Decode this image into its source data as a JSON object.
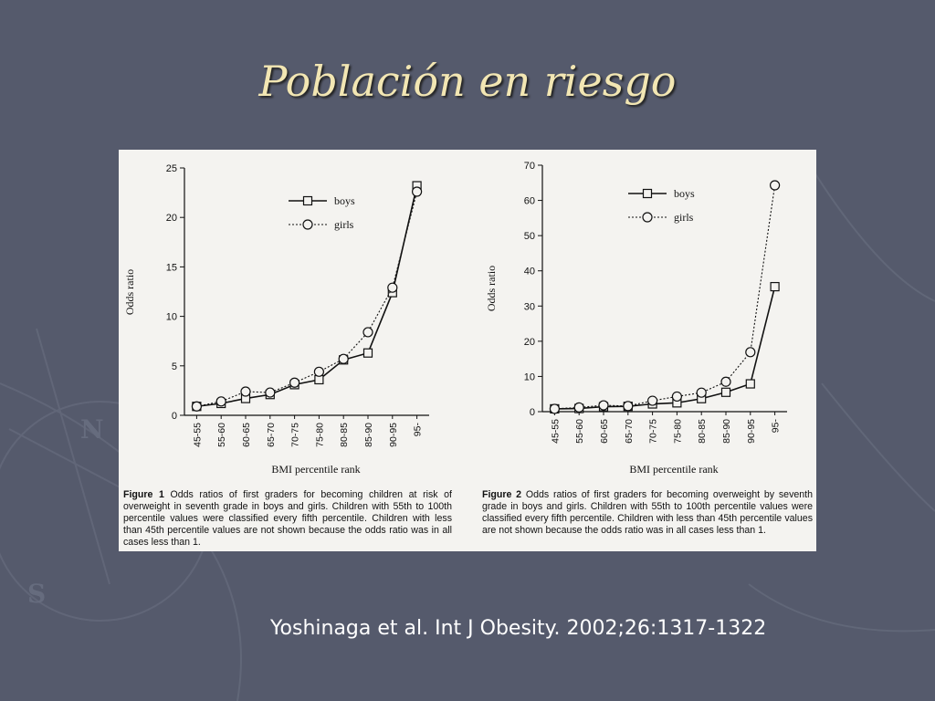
{
  "slide": {
    "title": "Población en riesgo",
    "citation": "Yoshinaga et al. Int J Obesity. 2002;26:1317-1322",
    "background": "#555a6c",
    "title_color": "#f2e6b3"
  },
  "chart_data": [
    {
      "type": "line",
      "categories": [
        "45-55",
        "55-60",
        "60-65",
        "65-70",
        "70-75",
        "75-80",
        "80-85",
        "85-90",
        "90-95",
        "95-"
      ],
      "series": [
        {
          "name": "boys",
          "marker": "square",
          "style": "solid",
          "values": [
            0.9,
            1.2,
            1.7,
            2.1,
            3.1,
            3.6,
            5.6,
            6.3,
            12.4,
            23.2
          ]
        },
        {
          "name": "girls",
          "marker": "circle",
          "style": "dotted",
          "values": [
            0.9,
            1.4,
            2.4,
            2.3,
            3.3,
            4.4,
            5.7,
            8.4,
            12.9,
            22.6
          ]
        }
      ],
      "ylabel": "Odds ratio",
      "xlabel": "BMI percentile rank",
      "ylim": [
        0,
        25
      ],
      "yticks": [
        "0",
        "5",
        "10",
        "15",
        "20",
        "25"
      ],
      "legend": "top-center",
      "caption_label": "Figure 1",
      "caption_text": "Odds ratios of first graders for becoming children at risk of overweight in seventh grade in boys and girls. Children with 55th to 100th percentile values were classified every fifth percentile. Children with less than 45th percentile values are not shown because the odds ratio was in all cases less than 1."
    },
    {
      "type": "line",
      "categories": [
        "45-55",
        "55-60",
        "60-65",
        "65-70",
        "70-75",
        "75-80",
        "80-85",
        "85-90",
        "90-95",
        "95-"
      ],
      "series": [
        {
          "name": "boys",
          "marker": "square",
          "style": "solid",
          "values": [
            0.8,
            0.9,
            1.4,
            1.5,
            2.2,
            2.5,
            3.7,
            5.5,
            7.9,
            35.5
          ]
        },
        {
          "name": "girls",
          "marker": "circle",
          "style": "dotted",
          "values": [
            0.8,
            1.2,
            1.8,
            1.6,
            3.1,
            4.3,
            5.4,
            8.5,
            16.9,
            64.3
          ]
        }
      ],
      "ylabel": "Odds ratio",
      "xlabel": "BMI percentile rank",
      "ylim": [
        0,
        70
      ],
      "yticks": [
        "0",
        "10",
        "20",
        "30",
        "40",
        "50",
        "60",
        "70"
      ],
      "legend": "top-center",
      "caption_label": "Figure 2",
      "caption_text": "Odds ratios of first graders for becoming overweight by seventh grade in boys and girls. Children with 55th to 100th percentile values were classified every fifth percentile. Children with less than 45th percentile values are not shown because the odds ratio was in all cases less than 1."
    }
  ]
}
